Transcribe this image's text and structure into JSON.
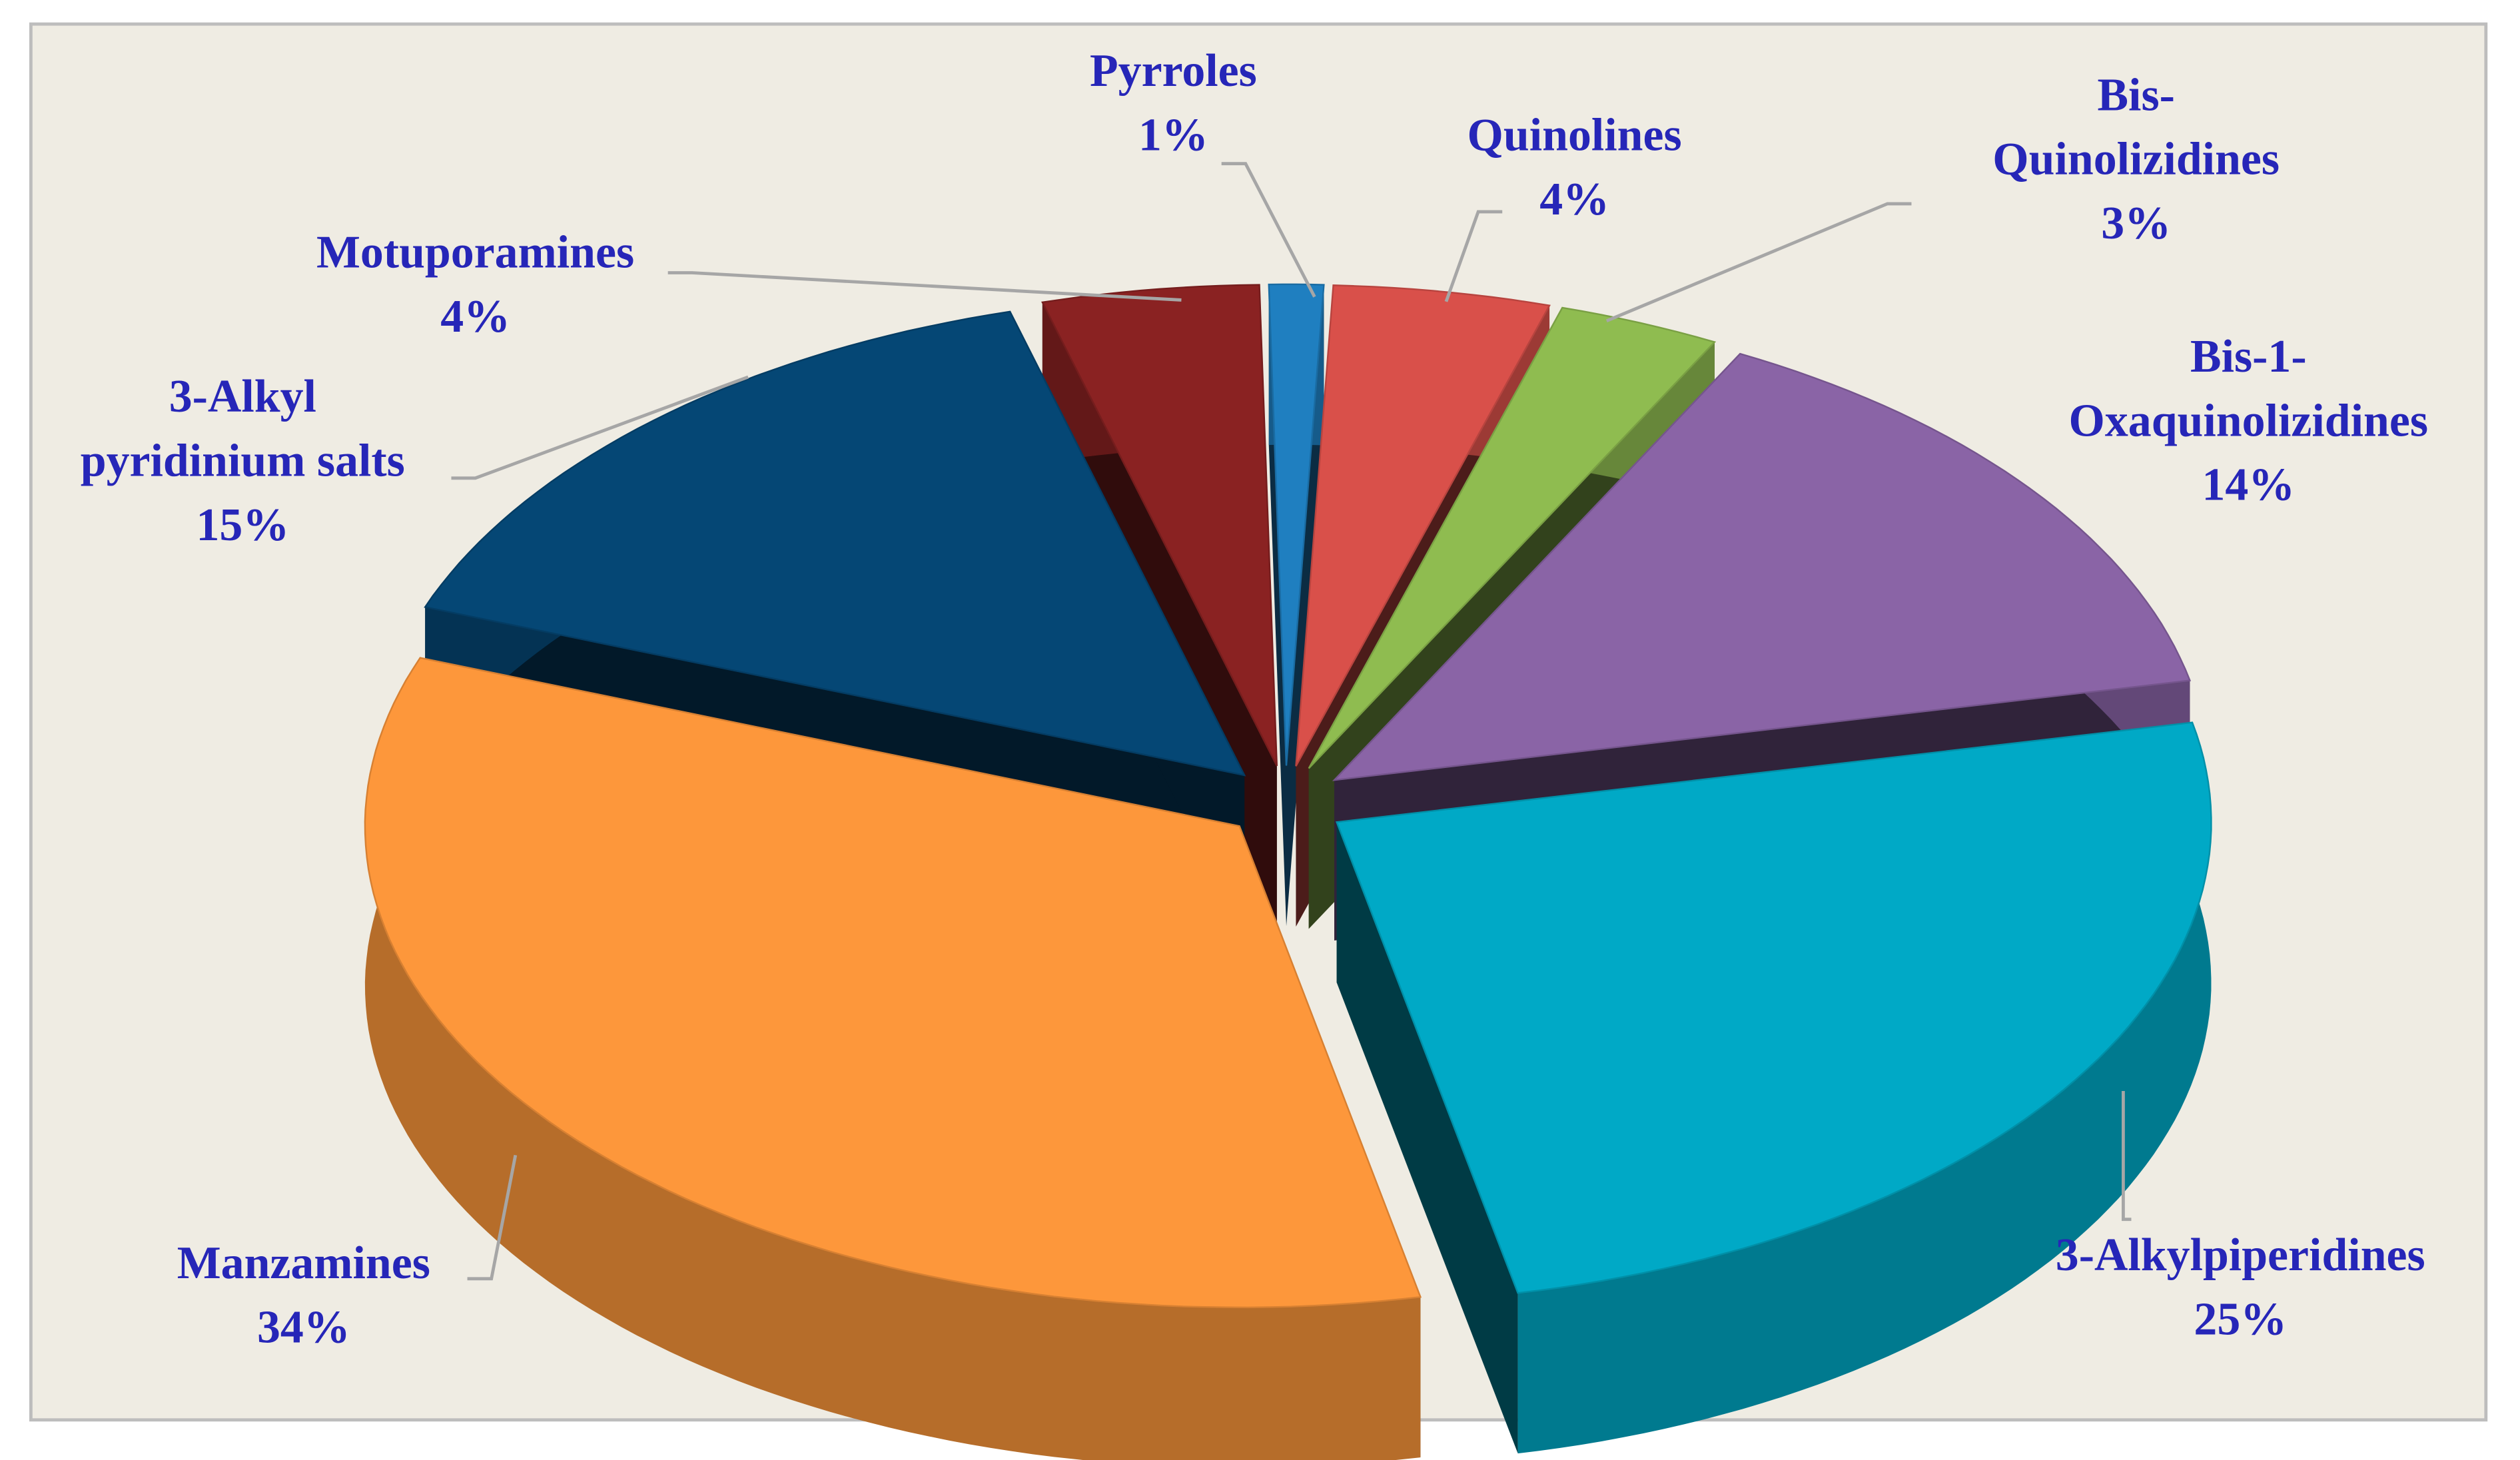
{
  "chart_data": {
    "type": "pie",
    "categories": [
      "Pyrroles",
      "Quinolines",
      "Bis-\nQuinolizidines",
      "Bis-1-\nOxaquinolizidines",
      "3-Alkylpiperidines",
      "Manzamines",
      "3-Alkyl\npyridinium salts",
      "Motuporamines"
    ],
    "values": [
      1,
      4,
      3,
      14,
      25,
      34,
      15,
      4
    ],
    "value_labels": [
      "1%",
      "4%",
      "3%",
      "14%",
      "25%",
      "34%",
      "15%",
      "4%"
    ],
    "colors": [
      "#1f7fc0",
      "#d9504a",
      "#8fbc50",
      "#8a64a6",
      "#00a9c6",
      "#fd973b",
      "#054775",
      "#8a2222"
    ]
  }
}
